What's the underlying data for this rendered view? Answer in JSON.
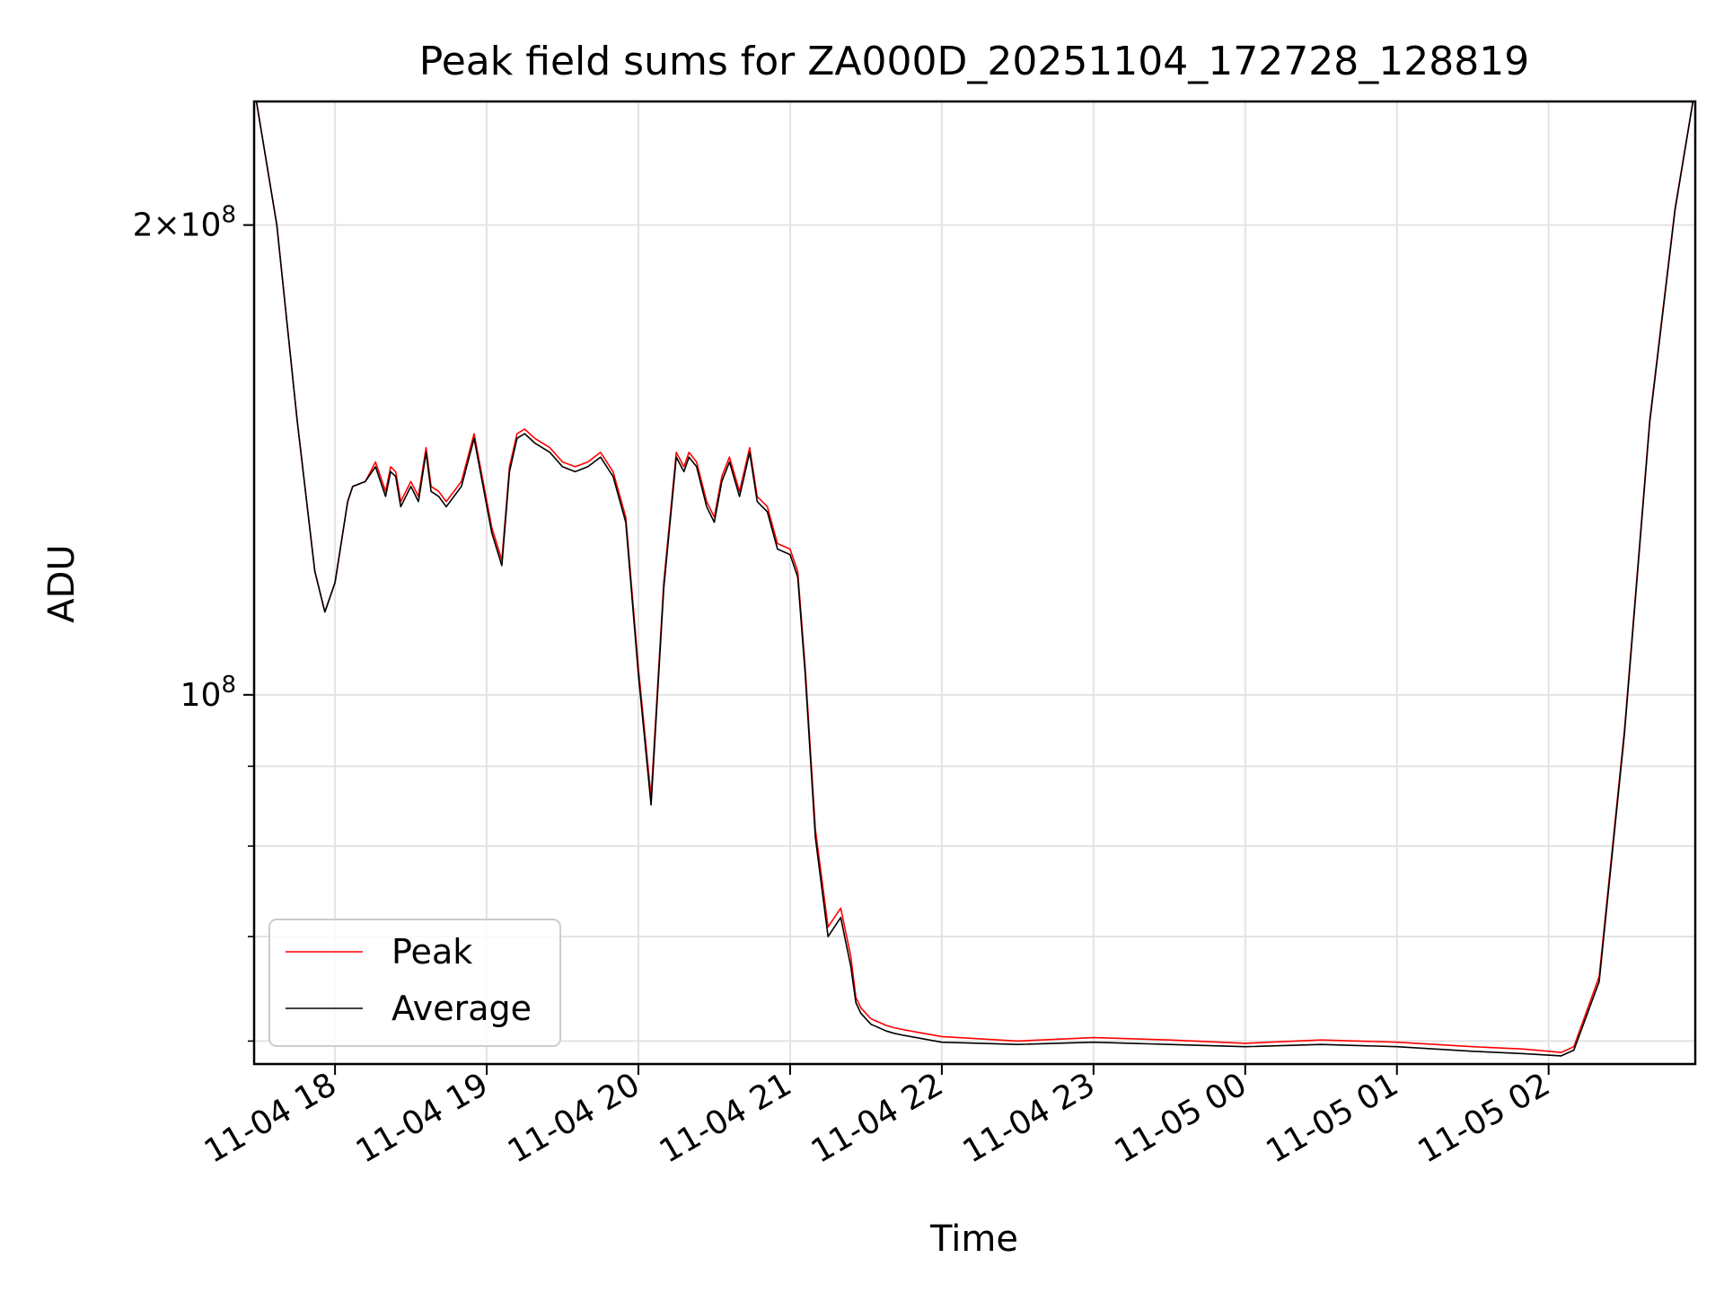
{
  "chart_data": {
    "type": "line",
    "title": "Peak field sums for ZA000D_20251104_172728_128819",
    "xlabel": "Time",
    "ylabel": "ADU",
    "yscale": "log",
    "grid": true,
    "legend_position": "lower left",
    "x_tick_labels": [
      "11-04 18",
      "11-04 19",
      "11-04 20",
      "11-04 21",
      "11-04 22",
      "11-04 23",
      "11-05 00",
      "11-05 01",
      "11-05 02"
    ],
    "x_ticks": [
      "2025-11-04 18:00",
      "2025-11-04 19:00",
      "2025-11-04 20:00",
      "2025-11-04 21:00",
      "2025-11-04 22:00",
      "2025-11-04 23:00",
      "2025-11-05 00:00",
      "2025-11-05 01:00",
      "2025-11-05 02:00"
    ],
    "xlim": [
      "2025-11-04 17:28",
      "2025-11-05 02:58"
    ],
    "ylim": [
      58000000,
      240000000
    ],
    "y_ticks_major": [
      {
        "value": 100000000,
        "label": "10^8"
      },
      {
        "value": 200000000,
        "label": "2×10^8"
      }
    ],
    "y_ticks_minor": [
      60000000,
      70000000,
      80000000,
      90000000
    ],
    "series": [
      {
        "name": "Peak",
        "color": "#ff0000",
        "x": [
          "2025-11-04 17:28",
          "2025-11-04 17:37",
          "2025-11-04 17:45",
          "2025-11-04 17:52",
          "2025-11-04 17:56",
          "2025-11-04 18:00",
          "2025-11-04 18:05",
          "2025-11-04 18:07",
          "2025-11-04 18:12",
          "2025-11-04 18:16",
          "2025-11-04 18:20",
          "2025-11-04 18:22",
          "2025-11-04 18:24",
          "2025-11-04 18:26",
          "2025-11-04 18:30",
          "2025-11-04 18:33",
          "2025-11-04 18:36",
          "2025-11-04 18:38",
          "2025-11-04 18:41",
          "2025-11-04 18:44",
          "2025-11-04 18:50",
          "2025-11-04 18:55",
          "2025-11-04 19:02",
          "2025-11-04 19:06",
          "2025-11-04 19:09",
          "2025-11-04 19:12",
          "2025-11-04 19:15",
          "2025-11-04 19:19",
          "2025-11-04 19:25",
          "2025-11-04 19:30",
          "2025-11-04 19:35",
          "2025-11-04 19:40",
          "2025-11-04 19:45",
          "2025-11-04 19:50",
          "2025-11-04 19:55",
          "2025-11-04 20:00",
          "2025-11-04 20:05",
          "2025-11-04 20:10",
          "2025-11-04 20:15",
          "2025-11-04 20:18",
          "2025-11-04 20:20",
          "2025-11-04 20:23",
          "2025-11-04 20:27",
          "2025-11-04 20:30",
          "2025-11-04 20:33",
          "2025-11-04 20:36",
          "2025-11-04 20:40",
          "2025-11-04 20:44",
          "2025-11-04 20:47",
          "2025-11-04 20:51",
          "2025-11-04 20:55",
          "2025-11-04 21:00",
          "2025-11-04 21:03",
          "2025-11-04 21:06",
          "2025-11-04 21:10",
          "2025-11-04 21:15",
          "2025-11-04 21:20",
          "2025-11-04 21:24",
          "2025-11-04 21:26",
          "2025-11-04 21:28",
          "2025-11-04 21:30",
          "2025-11-04 21:32",
          "2025-11-04 21:34",
          "2025-11-04 21:36",
          "2025-11-04 21:38",
          "2025-11-04 21:41",
          "2025-11-04 21:45",
          "2025-11-04 21:50",
          "2025-11-04 21:55",
          "2025-11-04 22:00",
          "2025-11-04 22:30",
          "2025-11-04 23:00",
          "2025-11-04 23:30",
          "2025-11-05 00:00",
          "2025-11-05 00:30",
          "2025-11-05 01:00",
          "2025-11-05 01:30",
          "2025-11-05 01:50",
          "2025-11-05 02:05",
          "2025-11-05 02:10",
          "2025-11-05 02:20",
          "2025-11-05 02:30",
          "2025-11-05 02:40",
          "2025-11-05 02:50",
          "2025-11-05 02:58"
        ],
        "y": [
          245000000,
          200000000,
          150000000,
          120000000,
          113000000,
          118000000,
          133000000,
          136000000,
          137000000,
          141000000,
          135000000,
          140000000,
          139000000,
          133000000,
          137000000,
          134000000,
          144000000,
          136000000,
          135000000,
          133000000,
          137000000,
          147000000,
          128000000,
          122000000,
          140000000,
          147000000,
          148000000,
          146000000,
          144000000,
          141000000,
          140000000,
          141000000,
          143000000,
          139000000,
          130000000,
          104000000,
          86000000,
          118000000,
          143000000,
          140000000,
          143000000,
          141000000,
          133000000,
          130000000,
          138000000,
          142000000,
          135000000,
          144000000,
          134000000,
          132000000,
          125000000,
          124000000,
          120000000,
          104000000,
          82000000,
          71000000,
          73000000,
          68000000,
          64000000,
          63000000,
          62500000,
          62000000,
          61800000,
          61600000,
          61400000,
          61200000,
          61000000,
          60800000,
          60600000,
          60400000,
          60000000,
          60300000,
          60100000,
          59800000,
          60100000,
          59900000,
          59500000,
          59300000,
          59000000,
          59500000,
          66000000,
          95000000,
          150000000,
          205000000,
          245000000
        ]
      },
      {
        "name": "Average",
        "color": "#000000",
        "x": [
          "2025-11-04 17:28",
          "2025-11-04 17:37",
          "2025-11-04 17:45",
          "2025-11-04 17:52",
          "2025-11-04 17:56",
          "2025-11-04 18:00",
          "2025-11-04 18:05",
          "2025-11-04 18:07",
          "2025-11-04 18:12",
          "2025-11-04 18:16",
          "2025-11-04 18:20",
          "2025-11-04 18:22",
          "2025-11-04 18:24",
          "2025-11-04 18:26",
          "2025-11-04 18:30",
          "2025-11-04 18:33",
          "2025-11-04 18:36",
          "2025-11-04 18:38",
          "2025-11-04 18:41",
          "2025-11-04 18:44",
          "2025-11-04 18:50",
          "2025-11-04 18:55",
          "2025-11-04 19:02",
          "2025-11-04 19:06",
          "2025-11-04 19:09",
          "2025-11-04 19:12",
          "2025-11-04 19:15",
          "2025-11-04 19:19",
          "2025-11-04 19:25",
          "2025-11-04 19:30",
          "2025-11-04 19:35",
          "2025-11-04 19:40",
          "2025-11-04 19:45",
          "2025-11-04 19:50",
          "2025-11-04 19:55",
          "2025-11-04 20:00",
          "2025-11-04 20:05",
          "2025-11-04 20:10",
          "2025-11-04 20:15",
          "2025-11-04 20:18",
          "2025-11-04 20:20",
          "2025-11-04 20:23",
          "2025-11-04 20:27",
          "2025-11-04 20:30",
          "2025-11-04 20:33",
          "2025-11-04 20:36",
          "2025-11-04 20:40",
          "2025-11-04 20:44",
          "2025-11-04 20:47",
          "2025-11-04 20:51",
          "2025-11-04 20:55",
          "2025-11-04 21:00",
          "2025-11-04 21:03",
          "2025-11-04 21:06",
          "2025-11-04 21:10",
          "2025-11-04 21:15",
          "2025-11-04 21:20",
          "2025-11-04 21:24",
          "2025-11-04 21:26",
          "2025-11-04 21:28",
          "2025-11-04 21:30",
          "2025-11-04 21:32",
          "2025-11-04 21:34",
          "2025-11-04 21:36",
          "2025-11-04 21:38",
          "2025-11-04 21:41",
          "2025-11-04 21:45",
          "2025-11-04 21:50",
          "2025-11-04 21:55",
          "2025-11-04 22:00",
          "2025-11-04 22:30",
          "2025-11-04 23:00",
          "2025-11-04 23:30",
          "2025-11-05 00:00",
          "2025-11-05 00:30",
          "2025-11-05 01:00",
          "2025-11-05 01:30",
          "2025-11-05 01:50",
          "2025-11-05 02:05",
          "2025-11-05 02:10",
          "2025-11-05 02:20",
          "2025-11-05 02:30",
          "2025-11-05 02:40",
          "2025-11-05 02:50",
          "2025-11-05 02:58"
        ],
        "y": [
          245000000,
          200000000,
          150000000,
          120000000,
          113000000,
          118000000,
          133000000,
          136000000,
          137000000,
          140000000,
          134000000,
          139000000,
          138000000,
          132000000,
          136000000,
          133000000,
          143000000,
          135000000,
          134000000,
          132000000,
          136000000,
          146000000,
          127000000,
          121000000,
          139000000,
          146000000,
          147000000,
          145000000,
          143000000,
          140000000,
          139000000,
          140000000,
          142000000,
          138000000,
          129000000,
          103000000,
          85000000,
          117000000,
          142000000,
          139000000,
          142000000,
          140000000,
          132000000,
          129000000,
          137000000,
          141000000,
          134000000,
          143000000,
          133000000,
          131000000,
          124000000,
          123000000,
          119000000,
          103000000,
          81000000,
          70000000,
          72000000,
          67000000,
          63500000,
          62500000,
          62000000,
          61500000,
          61300000,
          61100000,
          60900000,
          60700000,
          60500000,
          60300000,
          60100000,
          59900000,
          59700000,
          59900000,
          59700000,
          59500000,
          59700000,
          59500000,
          59100000,
          58900000,
          58700000,
          59200000,
          65500000,
          94500000,
          149500000,
          204500000,
          245000000
        ]
      }
    ]
  }
}
